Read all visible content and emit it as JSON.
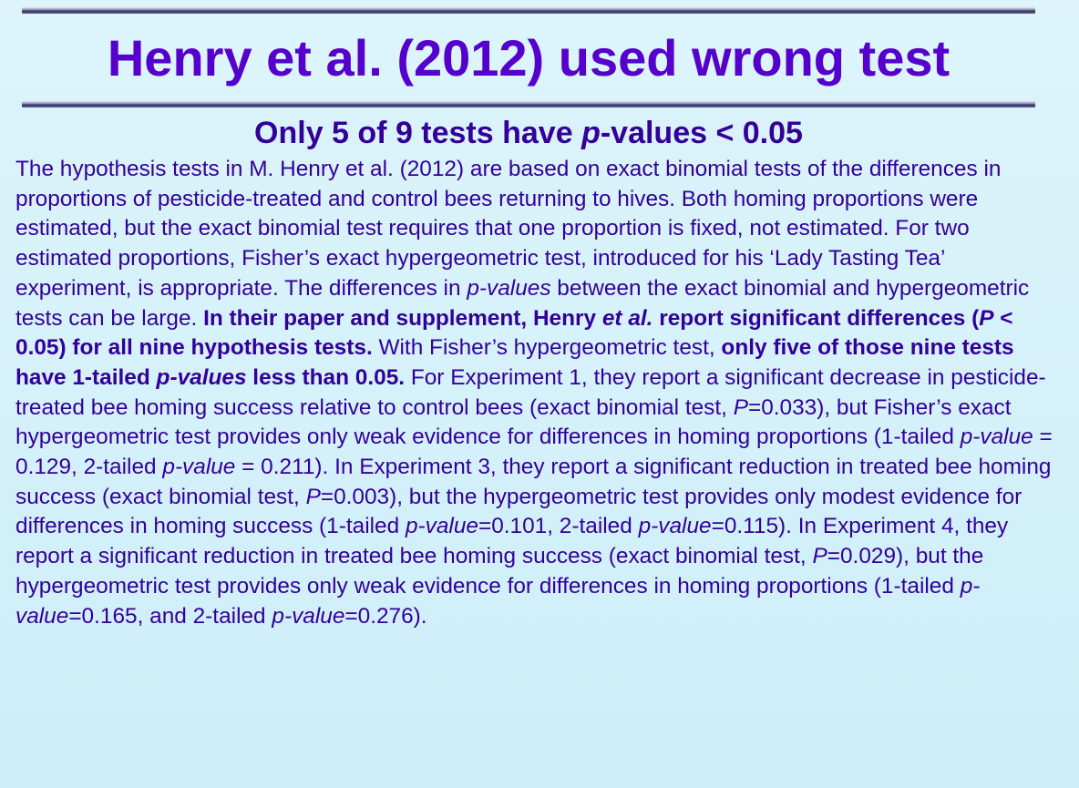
{
  "slide": {
    "title": "Henry et al. (2012) used wrong test",
    "subtitle": {
      "pre": "Only 5 of 9 tests have ",
      "italic": "p",
      "post": "-values < 0.05"
    },
    "body": {
      "s01": "The hypothesis tests in M. Henry et al. (2012) are based on exact binomial tests of the differences in proportions of pesticide-treated and control bees returning to hives. Both homing proportions were estimated, but the exact binomial test requires that one proportion is fixed, not estimated. For two estimated proportions, Fisher’s exact hypergeometric test, introduced for his ‘Lady Tasting Tea’ experiment, is appropriate. The differences in ",
      "s02": "p-values",
      "s03": " between the exact binomial and hypergeometric tests can be large. ",
      "s04": "In their paper and supplement, Henry ",
      "s05": "et al.",
      "s06": " report significant differences (",
      "s07": "P",
      "s08": " < 0.05) for all nine hypothesis tests.",
      "s09": " With Fisher’s hypergeometric test, ",
      "s10": "only five of those nine tests have 1-tailed ",
      "s11": "p-values",
      "s12": " less than 0.05.",
      "s13": " For Experiment 1, they report a significant decrease in pesticide-treated bee homing success relative to control bees (exact binomial test, ",
      "s14": "P",
      "s15": "=0.033), but Fisher’s exact hypergeometric test provides only weak evidence for differences in homing proportions (1-tailed ",
      "s16": "p-value",
      "s17": " = 0.129, 2-tailed ",
      "s18": "p-value",
      "s19": " = 0.211). In Experiment 3, they report a significant reduction in treated bee homing success (exact binomial test, ",
      "s20": "P",
      "s21": "=0.003), but the hypergeometric test provides only modest evidence for differences in homing success (1-tailed ",
      "s22": "p-value",
      "s23": "=0.101, 2-tailed ",
      "s24": "p-value",
      "s25": "=0.115). In Experiment 4, they report a significant reduction in treated bee homing success (exact binomial test, ",
      "s26": "P",
      "s27": "=0.029), but the hypergeometric test provides only weak evidence for differences in homing proportions (1-tailed ",
      "s28": "p-value",
      "s29": "=0.165, and 2-tailed ",
      "s30": "p-value",
      "s31": "=0.276)."
    }
  }
}
